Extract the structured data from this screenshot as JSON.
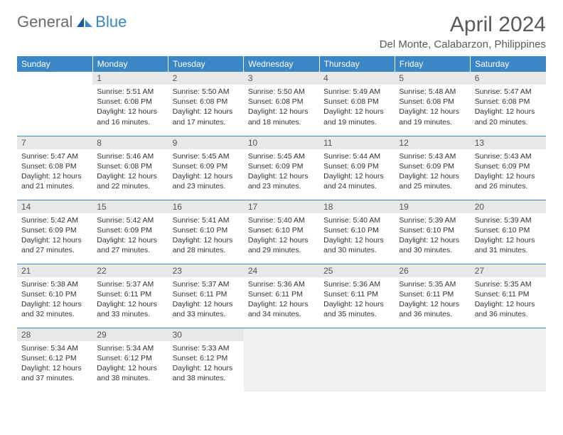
{
  "brand": {
    "part1": "General",
    "part2": "Blue"
  },
  "title": "April 2024",
  "location": "Del Monte, Calabarzon, Philippines",
  "colors": {
    "header_bg": "#3b86c4",
    "header_text": "#ffffff",
    "daynum_bg": "#e8e8e8",
    "border": "#3b86c4",
    "body_text": "#333333",
    "title_text": "#5a5a5a",
    "logo_gray": "#6a6a6a",
    "logo_blue": "#3b86c4",
    "trailing_bg": "#f0f0f0"
  },
  "weekdays": [
    "Sunday",
    "Monday",
    "Tuesday",
    "Wednesday",
    "Thursday",
    "Friday",
    "Saturday"
  ],
  "weeks": [
    [
      {
        "n": "",
        "sr": "",
        "ss": "",
        "dl": ""
      },
      {
        "n": "1",
        "sr": "Sunrise: 5:51 AM",
        "ss": "Sunset: 6:08 PM",
        "dl": "Daylight: 12 hours and 16 minutes."
      },
      {
        "n": "2",
        "sr": "Sunrise: 5:50 AM",
        "ss": "Sunset: 6:08 PM",
        "dl": "Daylight: 12 hours and 17 minutes."
      },
      {
        "n": "3",
        "sr": "Sunrise: 5:50 AM",
        "ss": "Sunset: 6:08 PM",
        "dl": "Daylight: 12 hours and 18 minutes."
      },
      {
        "n": "4",
        "sr": "Sunrise: 5:49 AM",
        "ss": "Sunset: 6:08 PM",
        "dl": "Daylight: 12 hours and 19 minutes."
      },
      {
        "n": "5",
        "sr": "Sunrise: 5:48 AM",
        "ss": "Sunset: 6:08 PM",
        "dl": "Daylight: 12 hours and 19 minutes."
      },
      {
        "n": "6",
        "sr": "Sunrise: 5:47 AM",
        "ss": "Sunset: 6:08 PM",
        "dl": "Daylight: 12 hours and 20 minutes."
      }
    ],
    [
      {
        "n": "7",
        "sr": "Sunrise: 5:47 AM",
        "ss": "Sunset: 6:08 PM",
        "dl": "Daylight: 12 hours and 21 minutes."
      },
      {
        "n": "8",
        "sr": "Sunrise: 5:46 AM",
        "ss": "Sunset: 6:08 PM",
        "dl": "Daylight: 12 hours and 22 minutes."
      },
      {
        "n": "9",
        "sr": "Sunrise: 5:45 AM",
        "ss": "Sunset: 6:09 PM",
        "dl": "Daylight: 12 hours and 23 minutes."
      },
      {
        "n": "10",
        "sr": "Sunrise: 5:45 AM",
        "ss": "Sunset: 6:09 PM",
        "dl": "Daylight: 12 hours and 23 minutes."
      },
      {
        "n": "11",
        "sr": "Sunrise: 5:44 AM",
        "ss": "Sunset: 6:09 PM",
        "dl": "Daylight: 12 hours and 24 minutes."
      },
      {
        "n": "12",
        "sr": "Sunrise: 5:43 AM",
        "ss": "Sunset: 6:09 PM",
        "dl": "Daylight: 12 hours and 25 minutes."
      },
      {
        "n": "13",
        "sr": "Sunrise: 5:43 AM",
        "ss": "Sunset: 6:09 PM",
        "dl": "Daylight: 12 hours and 26 minutes."
      }
    ],
    [
      {
        "n": "14",
        "sr": "Sunrise: 5:42 AM",
        "ss": "Sunset: 6:09 PM",
        "dl": "Daylight: 12 hours and 27 minutes."
      },
      {
        "n": "15",
        "sr": "Sunrise: 5:42 AM",
        "ss": "Sunset: 6:09 PM",
        "dl": "Daylight: 12 hours and 27 minutes."
      },
      {
        "n": "16",
        "sr": "Sunrise: 5:41 AM",
        "ss": "Sunset: 6:10 PM",
        "dl": "Daylight: 12 hours and 28 minutes."
      },
      {
        "n": "17",
        "sr": "Sunrise: 5:40 AM",
        "ss": "Sunset: 6:10 PM",
        "dl": "Daylight: 12 hours and 29 minutes."
      },
      {
        "n": "18",
        "sr": "Sunrise: 5:40 AM",
        "ss": "Sunset: 6:10 PM",
        "dl": "Daylight: 12 hours and 30 minutes."
      },
      {
        "n": "19",
        "sr": "Sunrise: 5:39 AM",
        "ss": "Sunset: 6:10 PM",
        "dl": "Daylight: 12 hours and 30 minutes."
      },
      {
        "n": "20",
        "sr": "Sunrise: 5:39 AM",
        "ss": "Sunset: 6:10 PM",
        "dl": "Daylight: 12 hours and 31 minutes."
      }
    ],
    [
      {
        "n": "21",
        "sr": "Sunrise: 5:38 AM",
        "ss": "Sunset: 6:10 PM",
        "dl": "Daylight: 12 hours and 32 minutes."
      },
      {
        "n": "22",
        "sr": "Sunrise: 5:37 AM",
        "ss": "Sunset: 6:11 PM",
        "dl": "Daylight: 12 hours and 33 minutes."
      },
      {
        "n": "23",
        "sr": "Sunrise: 5:37 AM",
        "ss": "Sunset: 6:11 PM",
        "dl": "Daylight: 12 hours and 33 minutes."
      },
      {
        "n": "24",
        "sr": "Sunrise: 5:36 AM",
        "ss": "Sunset: 6:11 PM",
        "dl": "Daylight: 12 hours and 34 minutes."
      },
      {
        "n": "25",
        "sr": "Sunrise: 5:36 AM",
        "ss": "Sunset: 6:11 PM",
        "dl": "Daylight: 12 hours and 35 minutes."
      },
      {
        "n": "26",
        "sr": "Sunrise: 5:35 AM",
        "ss": "Sunset: 6:11 PM",
        "dl": "Daylight: 12 hours and 36 minutes."
      },
      {
        "n": "27",
        "sr": "Sunrise: 5:35 AM",
        "ss": "Sunset: 6:11 PM",
        "dl": "Daylight: 12 hours and 36 minutes."
      }
    ],
    [
      {
        "n": "28",
        "sr": "Sunrise: 5:34 AM",
        "ss": "Sunset: 6:12 PM",
        "dl": "Daylight: 12 hours and 37 minutes."
      },
      {
        "n": "29",
        "sr": "Sunrise: 5:34 AM",
        "ss": "Sunset: 6:12 PM",
        "dl": "Daylight: 12 hours and 38 minutes."
      },
      {
        "n": "30",
        "sr": "Sunrise: 5:33 AM",
        "ss": "Sunset: 6:12 PM",
        "dl": "Daylight: 12 hours and 38 minutes."
      },
      {
        "n": "",
        "sr": "",
        "ss": "",
        "dl": "",
        "trail": true
      },
      {
        "n": "",
        "sr": "",
        "ss": "",
        "dl": "",
        "trail": true
      },
      {
        "n": "",
        "sr": "",
        "ss": "",
        "dl": "",
        "trail": true
      },
      {
        "n": "",
        "sr": "",
        "ss": "",
        "dl": "",
        "trail": true
      }
    ]
  ]
}
